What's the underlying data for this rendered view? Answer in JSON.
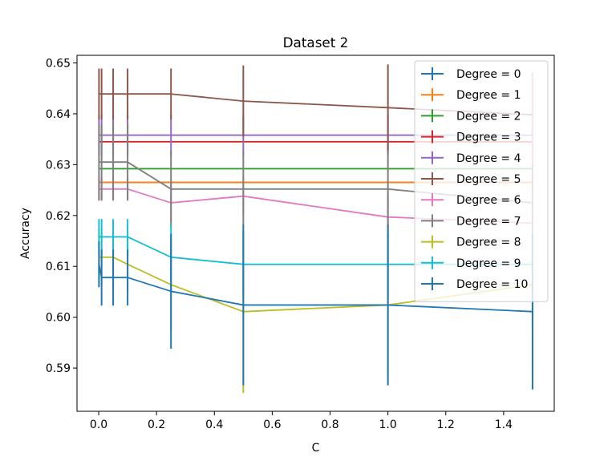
{
  "chart_data": {
    "type": "line",
    "title": "Dataset 2",
    "xlabel": "C",
    "ylabel": "Accuracy",
    "xlim": [
      -0.075,
      1.575
    ],
    "ylim": [
      0.5815,
      0.6515
    ],
    "xticks": [
      0.0,
      0.2,
      0.4,
      0.6,
      0.8,
      1.0,
      1.2,
      1.4
    ],
    "xtick_labels": [
      "0.0",
      "0.2",
      "0.4",
      "0.6",
      "0.8",
      "1.0",
      "1.2",
      "1.4"
    ],
    "yticks": [
      0.59,
      0.6,
      0.61,
      0.62,
      0.63,
      0.64,
      0.65
    ],
    "ytick_labels": [
      "0.59",
      "0.60",
      "0.61",
      "0.62",
      "0.63",
      "0.64",
      "0.65"
    ],
    "grid": false,
    "legend_position": "top-right",
    "x": [
      0.001,
      0.01,
      0.05,
      0.1,
      0.25,
      0.5,
      1.0,
      1.5
    ],
    "series": [
      {
        "name": "Degree = 0",
        "color": "#1f77b4",
        "values": [
          0.6265,
          0.6265,
          0.6265,
          0.6265,
          0.6265,
          0.6265,
          0.6265,
          0.6265
        ],
        "errors": [
          0,
          0,
          0,
          0,
          0,
          0,
          0,
          0
        ]
      },
      {
        "name": "Degree = 1",
        "color": "#ff7f0e",
        "values": [
          0.6265,
          0.6265,
          0.6265,
          0.6265,
          0.6265,
          0.6265,
          0.6265,
          0.6265
        ],
        "errors": [
          0,
          0,
          0,
          0,
          0,
          0,
          0,
          0
        ]
      },
      {
        "name": "Degree = 2",
        "color": "#2ca02c",
        "values": [
          0.6292,
          0.6292,
          0.6292,
          0.6292,
          0.6292,
          0.6292,
          0.6292,
          0.6292
        ],
        "errors": [
          0,
          0,
          0,
          0,
          0,
          0,
          0,
          0
        ]
      },
      {
        "name": "Degree = 3",
        "color": "#d62728",
        "values": [
          0.6345,
          0.6345,
          0.6345,
          0.6345,
          0.6345,
          0.6345,
          0.6345,
          0.6345
        ],
        "errors": [
          0,
          0,
          0,
          0,
          0,
          0,
          0,
          0
        ]
      },
      {
        "name": "Degree = 4",
        "color": "#9467bd",
        "values": [
          0.6358,
          0.6358,
          0.6358,
          0.6358,
          0.6358,
          0.6358,
          0.6358,
          0.6358
        ],
        "errors": [
          0.004,
          0.004,
          0.004,
          0.004,
          0.004,
          0.004,
          0.004,
          0.004
        ]
      },
      {
        "name": "Degree = 5",
        "color": "#8c564b",
        "values": [
          0.6439,
          0.6439,
          0.6439,
          0.6439,
          0.6439,
          0.6425,
          0.6412,
          0.6398
        ],
        "errors": [
          0.005,
          0.005,
          0.005,
          0.005,
          0.005,
          0.007,
          0.0085,
          0.008
        ]
      },
      {
        "name": "Degree = 6",
        "color": "#e377c2",
        "values": [
          0.6252,
          0.6252,
          0.6252,
          0.6252,
          0.6225,
          0.6238,
          0.6197,
          0.6185
        ],
        "errors": [
          0.0023,
          0.0023,
          0.0023,
          0.0023,
          0.0038,
          0.0038,
          0.0047,
          0.0297
        ]
      },
      {
        "name": "Degree = 7",
        "color": "#7f7f7f",
        "values": [
          0.6305,
          0.6305,
          0.6305,
          0.6305,
          0.6252,
          0.6252,
          0.6252,
          0.6225
        ],
        "errors": [
          0.0075,
          0.0075,
          0.0075,
          0.0075,
          0.0075,
          0.0075,
          0.0075,
          0.0075
        ]
      },
      {
        "name": "Degree = 8",
        "color": "#bcbd22",
        "values": [
          0.6118,
          0.6118,
          0.6118,
          0.6104,
          0.6064,
          0.6011,
          0.6024,
          0.6064
        ],
        "errors": [
          0.0055,
          0.0055,
          0.0055,
          0.0055,
          0.009,
          0.016,
          0.014,
          0.009
        ]
      },
      {
        "name": "Degree = 9",
        "color": "#17becf",
        "values": [
          0.6158,
          0.6158,
          0.6158,
          0.6158,
          0.6118,
          0.6104,
          0.6104,
          0.6104
        ],
        "errors": [
          0.0035,
          0.0035,
          0.0035,
          0.0035,
          0.0065,
          0.0065,
          0.0065,
          0.0065
        ]
      },
      {
        "name": "Degree = 10",
        "color": "#1f77b4",
        "values": [
          0.6104,
          0.6078,
          0.6078,
          0.6078,
          0.6051,
          0.6024,
          0.6024,
          0.6011
        ],
        "errors": [
          0.0045,
          0.0055,
          0.0055,
          0.0055,
          0.0113,
          0.0158,
          0.0158,
          0.0153
        ]
      }
    ]
  }
}
